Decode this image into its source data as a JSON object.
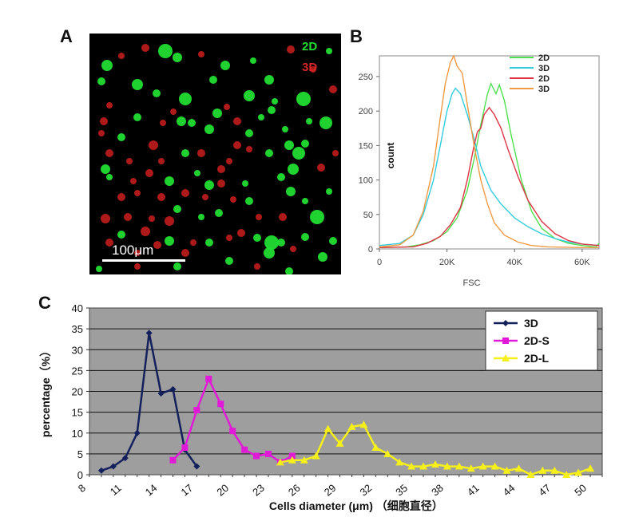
{
  "panels": {
    "a": "A",
    "b": "B",
    "c": "C"
  },
  "micrograph": {
    "legend_green": "2D",
    "legend_red": "3D",
    "scale_label": "100μm",
    "green_color": "#22dd33",
    "red_color": "#cc1f1f"
  },
  "chart_data": [
    {
      "type": "line",
      "panel": "B",
      "xlabel": "FSC",
      "ylabel": "count",
      "xlim": [
        0,
        65000
      ],
      "ylim": [
        0,
        280
      ],
      "x_ticks": [
        "0",
        "20K",
        "40K",
        "60K"
      ],
      "y_ticks": [
        "0",
        "50",
        "100",
        "150",
        "200",
        "250"
      ],
      "legend_position": "top-right",
      "grid": false,
      "series": [
        {
          "name": "2D",
          "color": "#4fe04f",
          "points": [
            [
              0,
              2
            ],
            [
              8000,
              3
            ],
            [
              12000,
              6
            ],
            [
              16000,
              12
            ],
            [
              20000,
              25
            ],
            [
              23000,
              45
            ],
            [
              26000,
              85
            ],
            [
              28000,
              130
            ],
            [
              30000,
              180
            ],
            [
              32000,
              225
            ],
            [
              33000,
              240
            ],
            [
              34500,
              225
            ],
            [
              35500,
              238
            ],
            [
              37000,
              215
            ],
            [
              39000,
              165
            ],
            [
              42000,
              100
            ],
            [
              45000,
              55
            ],
            [
              48000,
              30
            ],
            [
              52000,
              15
            ],
            [
              56000,
              8
            ],
            [
              60000,
              5
            ],
            [
              64000,
              3
            ],
            [
              65000,
              8
            ]
          ]
        },
        {
          "name": "3D",
          "color": "#33ccdd",
          "points": [
            [
              0,
              5
            ],
            [
              6000,
              8
            ],
            [
              10000,
              20
            ],
            [
              13000,
              50
            ],
            [
              16000,
              100
            ],
            [
              18000,
              150
            ],
            [
              20000,
              200
            ],
            [
              21500,
              225
            ],
            [
              22500,
              233
            ],
            [
              24000,
              225
            ],
            [
              26000,
              195
            ],
            [
              28000,
              160
            ],
            [
              30000,
              120
            ],
            [
              33000,
              85
            ],
            [
              36000,
              65
            ],
            [
              40000,
              45
            ],
            [
              44000,
              32
            ],
            [
              48000,
              22
            ],
            [
              52000,
              15
            ],
            [
              56000,
              10
            ],
            [
              60000,
              7
            ],
            [
              65000,
              5
            ]
          ]
        },
        {
          "name": "2D",
          "color": "#dd3344",
          "points": [
            [
              0,
              2
            ],
            [
              10000,
              3
            ],
            [
              14000,
              8
            ],
            [
              18000,
              18
            ],
            [
              21000,
              35
            ],
            [
              24000,
              60
            ],
            [
              26000,
              100
            ],
            [
              28000,
              150
            ],
            [
              29000,
              170
            ],
            [
              30000,
              175
            ],
            [
              31000,
              195
            ],
            [
              32500,
              205
            ],
            [
              34000,
              195
            ],
            [
              36000,
              175
            ],
            [
              38000,
              145
            ],
            [
              41000,
              105
            ],
            [
              44000,
              70
            ],
            [
              48000,
              40
            ],
            [
              52000,
              22
            ],
            [
              56000,
              12
            ],
            [
              60000,
              7
            ],
            [
              65000,
              5
            ]
          ]
        },
        {
          "name": "3D",
          "color": "#f09a44",
          "points": [
            [
              0,
              3
            ],
            [
              6000,
              6
            ],
            [
              10000,
              20
            ],
            [
              13000,
              55
            ],
            [
              16000,
              120
            ],
            [
              18000,
              190
            ],
            [
              19500,
              240
            ],
            [
              21000,
              270
            ],
            [
              22000,
              280
            ],
            [
              23000,
              265
            ],
            [
              24500,
              255
            ],
            [
              26000,
              210
            ],
            [
              28000,
              150
            ],
            [
              30000,
              100
            ],
            [
              32000,
              65
            ],
            [
              34000,
              38
            ],
            [
              37000,
              20
            ],
            [
              41000,
              10
            ],
            [
              45000,
              5
            ],
            [
              50000,
              3
            ],
            [
              60000,
              2
            ],
            [
              65000,
              2
            ]
          ]
        }
      ]
    },
    {
      "type": "line",
      "panel": "C",
      "xlabel": "Cells diameter (μm) （细胞直径）",
      "ylabel": "percentage（%）",
      "ylim": [
        0,
        40
      ],
      "y_ticks": [
        "0",
        "5",
        "10",
        "15",
        "20",
        "25",
        "30",
        "35",
        "40"
      ],
      "x_ticks": [
        "8",
        "11",
        "14",
        "17",
        "20",
        "23",
        "26",
        "29",
        "32",
        "35",
        "38",
        "41",
        "44",
        "47",
        "50"
      ],
      "grid": true,
      "background": "#9e9e9e",
      "legend_position": "top-right",
      "series": [
        {
          "name": "3D",
          "color": "#14205c",
          "marker": "diamond",
          "points": [
            [
              9,
              1
            ],
            [
              10,
              2
            ],
            [
              11,
              4
            ],
            [
              12,
              10
            ],
            [
              13,
              34
            ],
            [
              14,
              19.5
            ],
            [
              15,
              20.5
            ],
            [
              16,
              6
            ],
            [
              17,
              2
            ]
          ]
        },
        {
          "name": "2D-S",
          "color": "#e01ad6",
          "marker": "square",
          "points": [
            [
              15,
              3.5
            ],
            [
              16,
              6.5
            ],
            [
              17,
              15.5
            ],
            [
              18,
              23
            ],
            [
              19,
              17
            ],
            [
              20,
              10.5
            ],
            [
              21,
              6
            ],
            [
              22,
              4.5
            ],
            [
              23,
              5
            ],
            [
              24,
              3
            ],
            [
              25,
              4.5
            ]
          ]
        },
        {
          "name": "2D-L",
          "color": "#f5f01a",
          "marker": "triangle",
          "points": [
            [
              24,
              3
            ],
            [
              25,
              3.5
            ],
            [
              26,
              3.5
            ],
            [
              27,
              4.5
            ],
            [
              28,
              11
            ],
            [
              29,
              7.5
            ],
            [
              30,
              11.5
            ],
            [
              31,
              12
            ],
            [
              32,
              6.5
            ],
            [
              33,
              5
            ],
            [
              34,
              3
            ],
            [
              35,
              2
            ],
            [
              36,
              2
            ],
            [
              37,
              2.5
            ],
            [
              38,
              2
            ],
            [
              39,
              2
            ],
            [
              40,
              1.5
            ],
            [
              41,
              2
            ],
            [
              42,
              2
            ],
            [
              43,
              1
            ],
            [
              44,
              1.5
            ],
            [
              45,
              0
            ],
            [
              46,
              1
            ],
            [
              47,
              1
            ],
            [
              48,
              0
            ],
            [
              49,
              0.5
            ],
            [
              50,
              1.5
            ]
          ]
        }
      ]
    }
  ]
}
